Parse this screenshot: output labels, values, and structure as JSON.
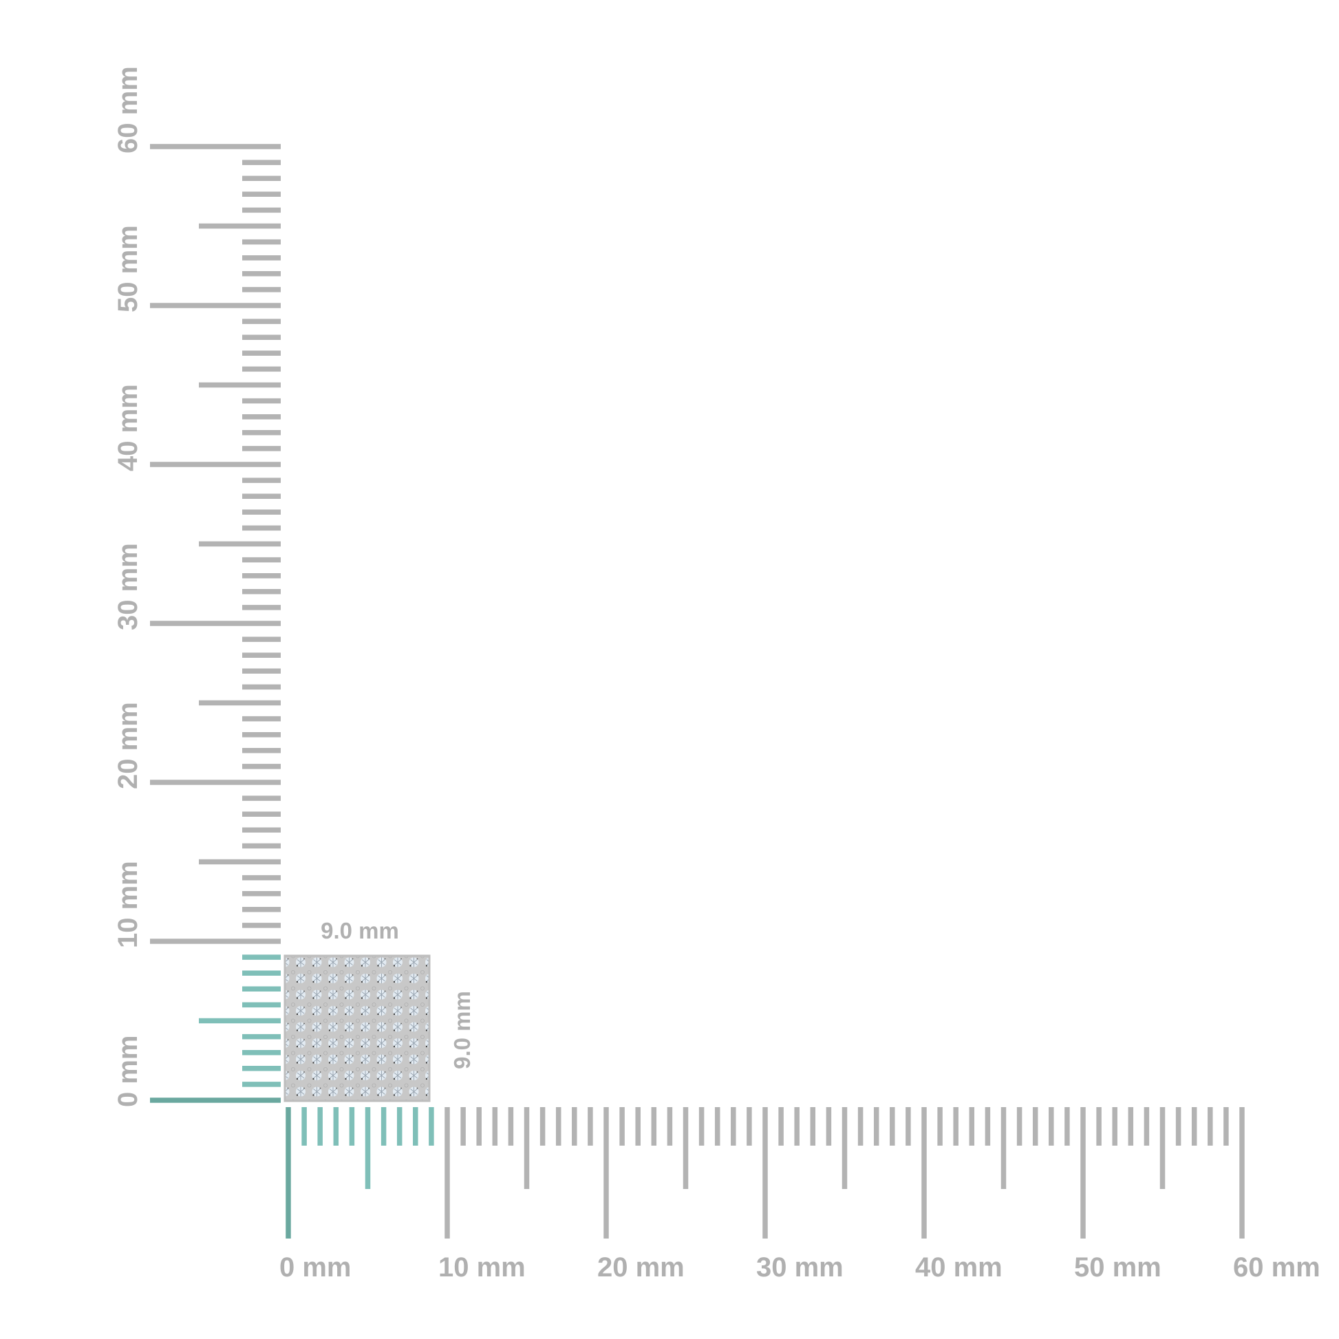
{
  "rulers": {
    "unit": "mm",
    "range": [
      0,
      60
    ],
    "major_step": 10,
    "labels": [
      "0 mm",
      "10 mm",
      "20 mm",
      "30 mm",
      "40 mm",
      "50 mm",
      "60 mm"
    ],
    "highlight_up_to": 9
  },
  "item": {
    "width_label": "9.0 mm",
    "height_label": "9.0 mm",
    "width_mm": 9,
    "height_mm": 9,
    "pattern": "diamond-pave-grid"
  },
  "colors": {
    "ruler": "#b3b3b3",
    "highlight": "#7fbfb8",
    "highlight_zero": "#6aa89f",
    "label": "#b0b0b0",
    "item_fill": "#c9c9c9",
    "diamond": "#dfe8f0"
  }
}
